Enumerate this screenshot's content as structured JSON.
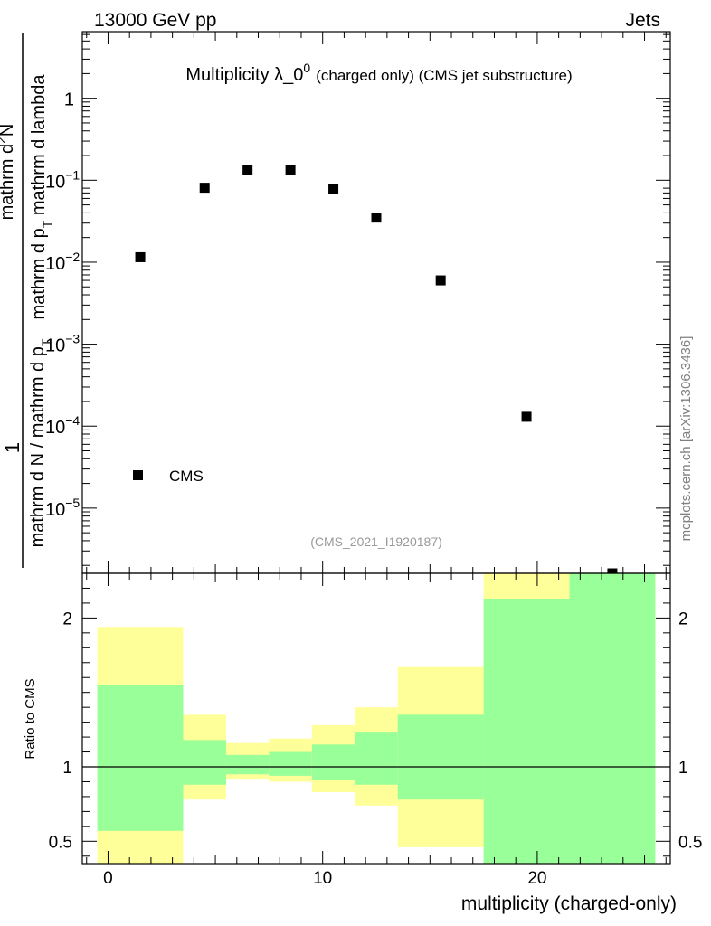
{
  "header": {
    "energy_label": "13000 GeV pp",
    "category_label": "Jets"
  },
  "side_label": "mcplots.cern.ch [arXiv:1306.3436]",
  "colors": {
    "band_outer": "#ffff99",
    "band_inner": "#99ff99",
    "marker": "#000000"
  },
  "chart_data": [
    {
      "type": "scatter",
      "panel": "main",
      "title_main": "Multiplicity λ_0",
      "title_sup": "0",
      "title_suffix": "(charged only) (CMS jet substructure)",
      "ylabel": "1 / mathrm d N / mathrm d p_T mathrm d^2 N / mathrm d p_T mathrm d lambda",
      "ylabel_lines": {
        "frac_one": "1",
        "denominator": "mathrm d N / mathrm d p",
        "denominator_sub": "T",
        "numerator_top": "mathrm d",
        "numerator_sup": "2",
        "numerator_N": "N",
        "numerator_rest": "mathrm d p",
        "numerator_rest_sub": "T",
        "numerator_end": " mathrm d lambda"
      },
      "yscale": "log",
      "ylim": [
        1.6e-06,
        6.5
      ],
      "xlim": [
        -1.2,
        26.2
      ],
      "ytick_labels": [
        {
          "value": 1,
          "mantissa": "1",
          "exp": ""
        },
        {
          "value": 0.1,
          "mantissa": "10",
          "exp": "−1"
        },
        {
          "value": 0.01,
          "mantissa": "10",
          "exp": "−2"
        },
        {
          "value": 0.001,
          "mantissa": "10",
          "exp": "−3"
        },
        {
          "value": 0.0001,
          "mantissa": "10",
          "exp": "−4"
        },
        {
          "value": 1e-05,
          "mantissa": "10",
          "exp": "−5"
        }
      ],
      "series": [
        {
          "name": "CMS",
          "x": [
            1.5,
            4.5,
            6.5,
            8.5,
            10.5,
            12.5,
            15.5,
            19.5,
            23.5
          ],
          "y": [
            0.0115,
            0.081,
            0.135,
            0.134,
            0.078,
            0.035,
            0.006,
            0.00013,
            1.6e-06
          ]
        }
      ],
      "legend": {
        "label": "CMS",
        "position": "bottom-left"
      },
      "watermark": "(CMS_2021_I1920187)"
    },
    {
      "type": "area",
      "panel": "ratio",
      "ylabel": "Ratio to CMS",
      "ylim": [
        0.35,
        2.3
      ],
      "yticks": [
        0.5,
        1,
        2
      ],
      "ytick_labels": [
        "0.5",
        "1",
        "2"
      ],
      "xlabel": "multiplicity (charged-only)",
      "xticks": [
        0,
        10,
        20
      ],
      "xtick_labels": [
        "0",
        "10",
        "20"
      ],
      "reference_line": 1,
      "bins": [
        {
          "x0": -0.5,
          "x1": 3.5,
          "outer": [
            0.35,
            1.94
          ],
          "inner": [
            0.57,
            1.55
          ]
        },
        {
          "x0": 3.5,
          "x1": 5.5,
          "outer": [
            0.78,
            1.35
          ],
          "inner": [
            0.88,
            1.18
          ]
        },
        {
          "x0": 5.5,
          "x1": 7.5,
          "outer": [
            0.92,
            1.16
          ],
          "inner": [
            0.95,
            1.08
          ]
        },
        {
          "x0": 7.5,
          "x1": 9.5,
          "outer": [
            0.9,
            1.19
          ],
          "inner": [
            0.94,
            1.1
          ]
        },
        {
          "x0": 9.5,
          "x1": 11.5,
          "outer": [
            0.83,
            1.28
          ],
          "inner": [
            0.91,
            1.15
          ]
        },
        {
          "x0": 11.5,
          "x1": 13.5,
          "outer": [
            0.74,
            1.4
          ],
          "inner": [
            0.88,
            1.23
          ]
        },
        {
          "x0": 13.5,
          "x1": 17.5,
          "outer": [
            0.46,
            1.67
          ],
          "inner": [
            0.78,
            1.35
          ]
        },
        {
          "x0": 17.5,
          "x1": 21.5,
          "outer": [
            0.35,
            2.3
          ],
          "inner": [
            0.35,
            2.13
          ]
        },
        {
          "x0": 21.5,
          "x1": 25.5,
          "outer": [
            0.35,
            2.3
          ],
          "inner": [
            0.35,
            2.3
          ]
        }
      ]
    }
  ]
}
